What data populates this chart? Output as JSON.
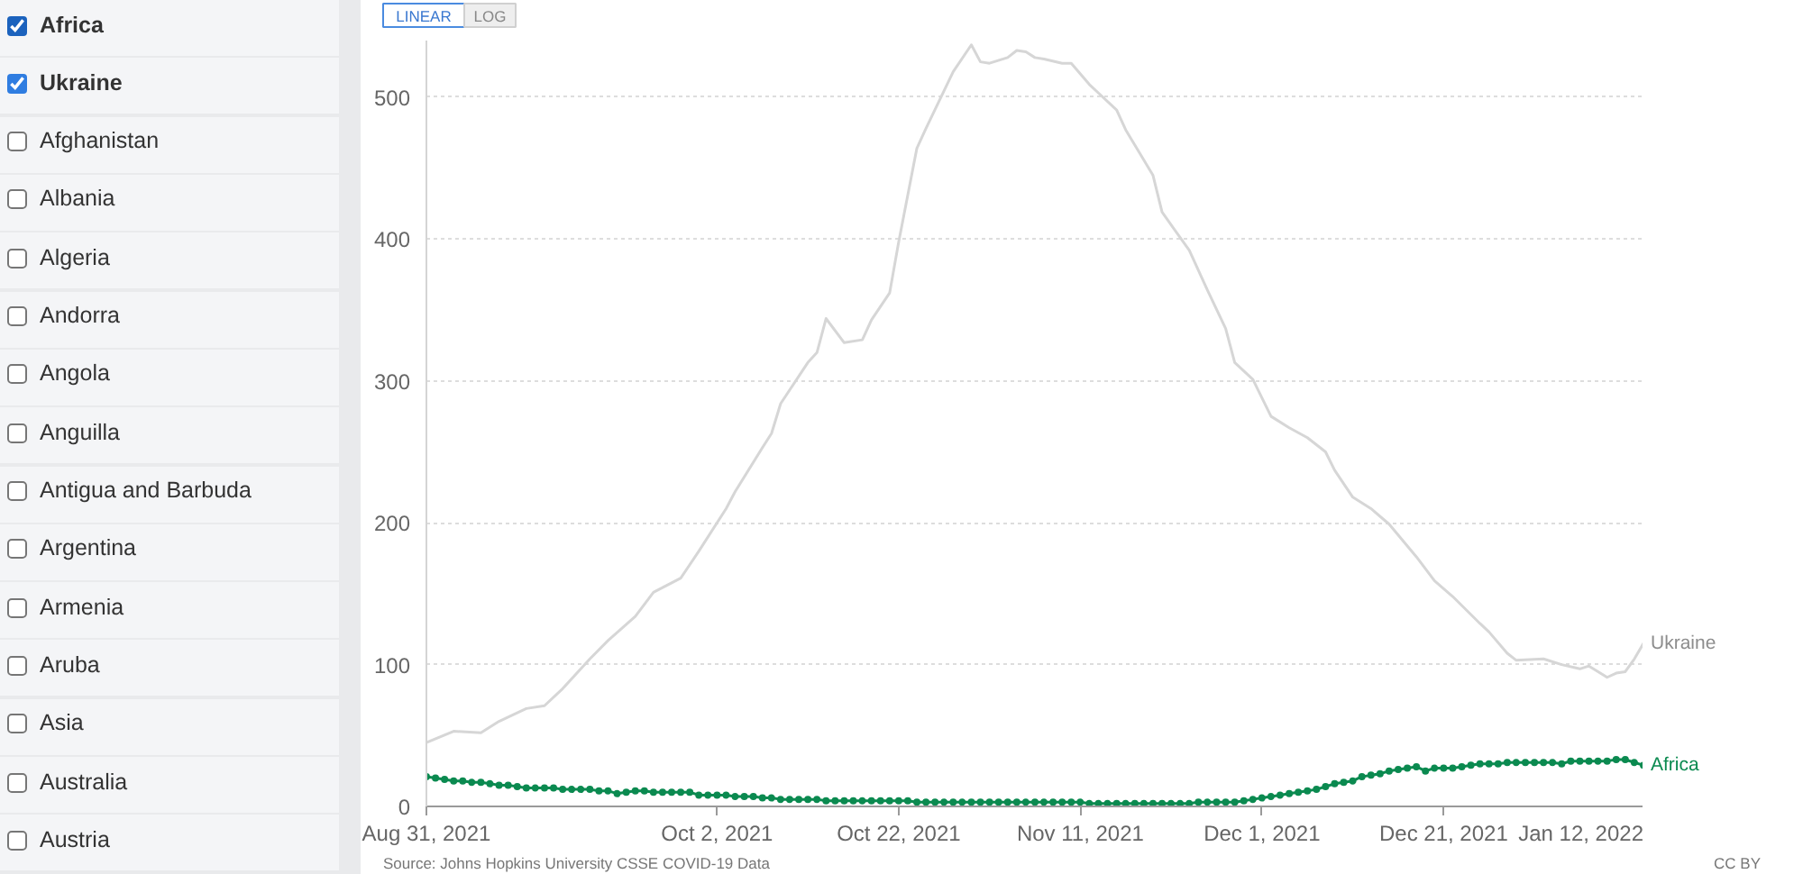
{
  "chart_data": [
    {
      "type": "other",
      "annotations": [
        "Africa",
        "Ukraine",
        "Afghanistan",
        "Albania",
        "Algeria",
        "Andorra",
        "Angola",
        "Anguilla",
        "Antigua and Barbuda",
        "Argentina",
        "Armenia",
        "Aruba",
        "Asia",
        "Australia",
        "Austria"
      ]
    },
    {
      "type": "line",
      "xlim": [
        "2021-08-31",
        "2022-01-12"
      ],
      "xticks": [
        {
          "value": "2021-08-31",
          "label": "Aug 31, 2021"
        },
        {
          "value": "2021-10-02",
          "label": "Oct 2, 2021"
        },
        {
          "value": "2021-10-22",
          "label": "Oct 22, 2021"
        },
        {
          "value": "2021-11-11",
          "label": "Nov 11, 2021"
        },
        {
          "value": "2021-12-01",
          "label": "Dec 1, 2021"
        },
        {
          "value": "2021-12-21",
          "label": "Dec 21, 2021"
        },
        {
          "value": "2022-01-12",
          "label": "Jan 12, 2022"
        }
      ],
      "ylim": [
        0,
        540
      ],
      "yticks": [
        0,
        100,
        200,
        300,
        400,
        500
      ],
      "grid": "y",
      "x": [
        "2021-08-31",
        "2021-09-01",
        "2021-09-02",
        "2021-09-03",
        "2021-09-04",
        "2021-09-05",
        "2021-09-06",
        "2021-09-07",
        "2021-09-08",
        "2021-09-09",
        "2021-09-10",
        "2021-09-11",
        "2021-09-12",
        "2021-09-13",
        "2021-09-14",
        "2021-09-15",
        "2021-09-16",
        "2021-09-17",
        "2021-09-18",
        "2021-09-19",
        "2021-09-20",
        "2021-09-21",
        "2021-09-22",
        "2021-09-23",
        "2021-09-24",
        "2021-09-25",
        "2021-09-26",
        "2021-09-27",
        "2021-09-28",
        "2021-09-29",
        "2021-09-30",
        "2021-10-01",
        "2021-10-02",
        "2021-10-03",
        "2021-10-04",
        "2021-10-05",
        "2021-10-06",
        "2021-10-07",
        "2021-10-08",
        "2021-10-09",
        "2021-10-10",
        "2021-10-11",
        "2021-10-12",
        "2021-10-13",
        "2021-10-14",
        "2021-10-15",
        "2021-10-16",
        "2021-10-17",
        "2021-10-18",
        "2021-10-19",
        "2021-10-20",
        "2021-10-21",
        "2021-10-22",
        "2021-10-23",
        "2021-10-24",
        "2021-10-25",
        "2021-10-26",
        "2021-10-27",
        "2021-10-28",
        "2021-10-29",
        "2021-10-30",
        "2021-10-31",
        "2021-11-01",
        "2021-11-02",
        "2021-11-03",
        "2021-11-04",
        "2021-11-05",
        "2021-11-06",
        "2021-11-07",
        "2021-11-08",
        "2021-11-09",
        "2021-11-10",
        "2021-11-11",
        "2021-11-12",
        "2021-11-13",
        "2021-11-14",
        "2021-11-15",
        "2021-11-16",
        "2021-11-17",
        "2021-11-18",
        "2021-11-19",
        "2021-11-20",
        "2021-11-21",
        "2021-11-22",
        "2021-11-23",
        "2021-11-24",
        "2021-11-25",
        "2021-11-26",
        "2021-11-27",
        "2021-11-28",
        "2021-11-29",
        "2021-11-30",
        "2021-12-01",
        "2021-12-02",
        "2021-12-03",
        "2021-12-04",
        "2021-12-05",
        "2021-12-06",
        "2021-12-07",
        "2021-12-08",
        "2021-12-09",
        "2021-12-10",
        "2021-12-11",
        "2021-12-12",
        "2021-12-13",
        "2021-12-14",
        "2021-12-15",
        "2021-12-16",
        "2021-12-17",
        "2021-12-18",
        "2021-12-19",
        "2021-12-20",
        "2021-12-21",
        "2021-12-22",
        "2021-12-23",
        "2021-12-24",
        "2021-12-25",
        "2021-12-26",
        "2021-12-27",
        "2021-12-28",
        "2021-12-29",
        "2021-12-30",
        "2021-12-31",
        "2022-01-01",
        "2022-01-02",
        "2022-01-03",
        "2022-01-04",
        "2022-01-05",
        "2022-01-06",
        "2022-01-07",
        "2022-01-08",
        "2022-01-09",
        "2022-01-10",
        "2022-01-11",
        "2022-01-12"
      ],
      "series": [
        {
          "name": "Ukraine",
          "color": "#d6d6d6",
          "x": [
            "2021-08-31",
            "2021-09-03",
            "2021-09-06",
            "2021-09-08",
            "2021-09-11",
            "2021-09-13",
            "2021-09-15",
            "2021-09-18",
            "2021-09-20",
            "2021-09-23",
            "2021-09-25",
            "2021-09-28",
            "2021-09-30",
            "2021-10-03",
            "2021-10-04",
            "2021-10-07",
            "2021-10-08",
            "2021-10-09",
            "2021-10-12",
            "2021-10-13",
            "2021-10-14",
            "2021-10-16",
            "2021-10-18",
            "2021-10-19",
            "2021-10-21",
            "2021-10-22",
            "2021-10-24",
            "2021-10-25",
            "2021-10-28",
            "2021-10-30",
            "2021-10-31",
            "2021-11-01",
            "2021-11-03",
            "2021-11-04",
            "2021-11-05",
            "2021-11-06",
            "2021-11-07",
            "2021-11-09",
            "2021-11-10",
            "2021-11-12",
            "2021-11-13",
            "2021-11-15",
            "2021-11-16",
            "2021-11-19",
            "2021-11-20",
            "2021-11-23",
            "2021-11-25",
            "2021-11-27",
            "2021-11-28",
            "2021-11-30",
            "2021-12-02",
            "2021-12-04",
            "2021-12-06",
            "2021-12-08",
            "2021-12-09",
            "2021-12-11",
            "2021-12-13",
            "2021-12-15",
            "2021-12-18",
            "2021-12-20",
            "2021-12-22",
            "2021-12-25",
            "2021-12-26",
            "2021-12-28",
            "2021-12-29",
            "2022-01-01",
            "2022-01-03",
            "2022-01-05",
            "2022-01-06",
            "2022-01-08",
            "2022-01-09",
            "2022-01-10",
            "2022-01-11",
            "2022-01-12"
          ],
          "values": [
            45,
            53,
            52,
            60,
            69,
            71,
            83,
            104,
            117,
            134,
            151,
            161,
            180,
            210,
            222,
            253,
            263,
            284,
            313,
            320,
            344,
            327,
            329,
            343,
            362,
            398,
            464,
            478,
            518,
            537,
            525,
            524,
            528,
            533,
            532,
            528,
            527,
            524,
            524,
            509,
            503,
            491,
            477,
            445,
            419,
            392,
            364,
            337,
            313,
            301,
            275,
            267,
            260,
            250,
            237,
            218,
            210,
            199,
            176,
            159,
            148,
            129,
            123,
            108,
            103,
            104,
            100,
            97,
            99,
            91,
            94,
            95,
            104,
            115
          ]
        },
        {
          "name": "Africa",
          "color": "#0b8a50",
          "marker": "circle",
          "values": [
            21,
            20,
            19,
            18,
            18,
            17,
            17,
            16,
            15,
            15,
            14,
            13,
            13,
            13,
            13,
            12,
            12,
            12,
            12,
            11,
            11,
            9,
            10,
            11,
            11,
            10,
            10,
            10,
            10,
            10,
            8,
            8,
            8,
            8,
            7,
            7,
            7,
            6,
            6,
            5,
            5,
            5,
            5,
            5,
            4,
            4,
            4,
            4,
            4,
            4,
            4,
            4,
            4,
            4,
            3,
            3,
            3,
            3,
            3,
            3,
            3,
            3,
            3,
            3,
            3,
            3,
            3,
            3,
            3,
            3,
            3,
            3,
            3,
            2,
            2,
            2,
            2,
            2,
            2,
            2,
            2,
            2,
            2,
            2,
            2,
            3,
            3,
            3,
            3,
            3,
            4,
            5,
            6,
            7,
            8,
            9,
            10,
            11,
            12,
            14,
            16,
            17,
            18,
            21,
            22,
            23,
            25,
            26,
            27,
            28,
            25,
            27,
            27,
            27,
            28,
            29,
            30,
            30,
            30,
            31,
            31,
            31,
            31,
            31,
            31,
            30,
            32,
            32,
            32,
            32,
            32,
            33,
            33,
            31,
            29
          ]
        }
      ],
      "annotations": [
        "LINEAR",
        "LOG",
        "Source: Johns Hopkins University CSSE COVID-19 Data",
        "CC BY"
      ]
    }
  ]
}
